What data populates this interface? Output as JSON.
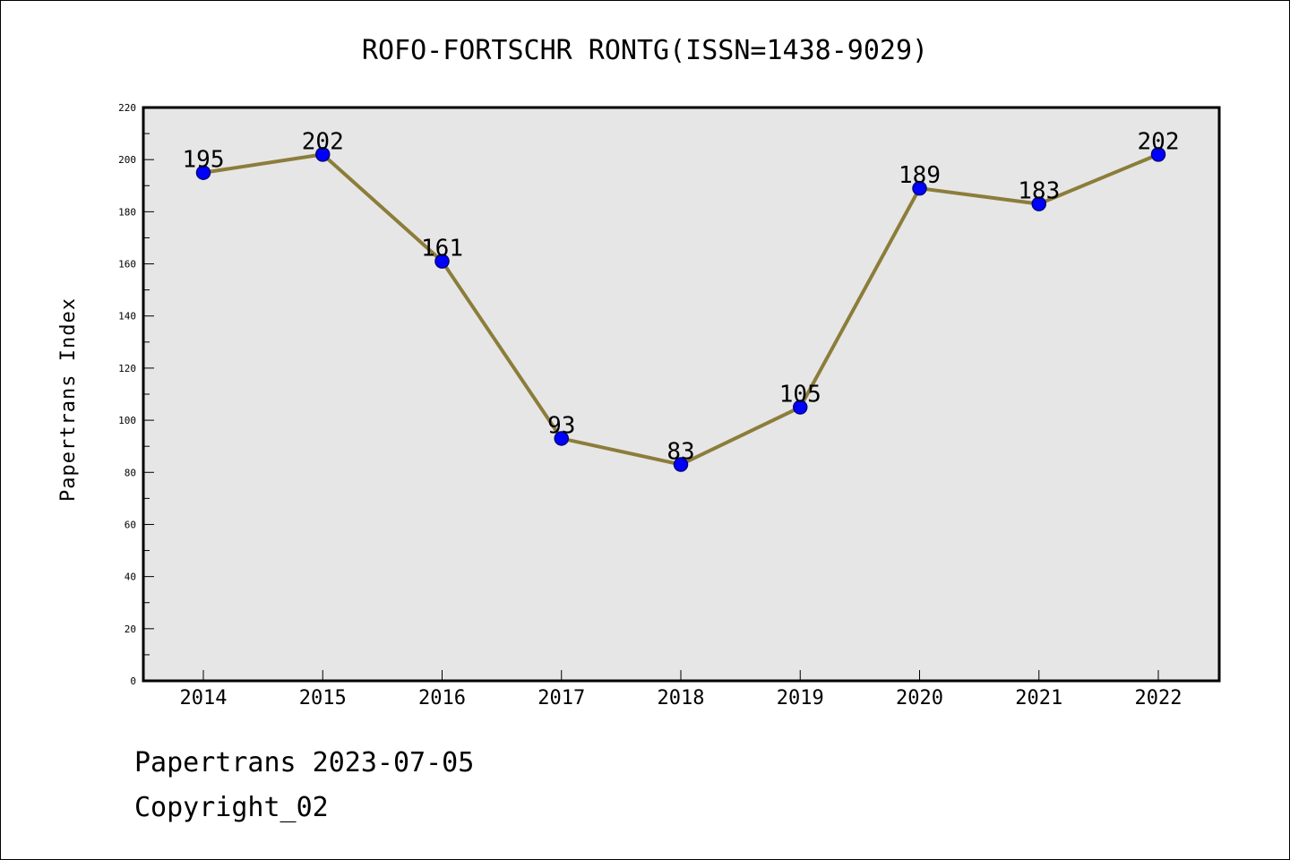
{
  "chart_data": {
    "type": "line",
    "title": "ROFO-FORTSCHR RONTG(ISSN=1438-9029)",
    "xlabel": "",
    "ylabel": "Papertrans Index",
    "categories": [
      "2014",
      "2015",
      "2016",
      "2017",
      "2018",
      "2019",
      "2020",
      "2021",
      "2022"
    ],
    "series": [
      {
        "values": [
          195,
          202,
          161,
          93,
          83,
          105,
          189,
          183,
          202
        ],
        "data_labels": [
          "195",
          "202",
          "161",
          "93",
          "83",
          "105",
          "189",
          "183",
          "202"
        ]
      }
    ],
    "y_ticks": [
      "0",
      "20",
      "40",
      "60",
      "80",
      "100",
      "120",
      "140",
      "160",
      "180",
      "200",
      "220"
    ],
    "ylim": [
      0,
      220
    ],
    "grid": false,
    "legend": "none",
    "colors": {
      "line": "#8b7d3a",
      "marker_fill": "#0000ff",
      "marker_edge": "#000080",
      "plot_background": "#e6e6e6"
    }
  },
  "footer": {
    "date_text": "Papertrans 2023-07-05",
    "copyright_text": "Copyright_02"
  }
}
